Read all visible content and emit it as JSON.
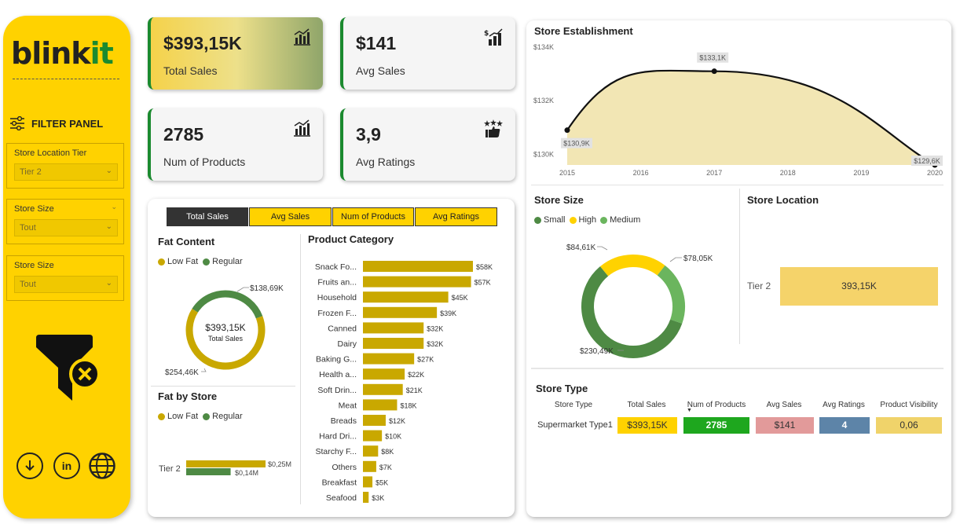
{
  "brand": {
    "logo_main": "blink",
    "logo_accent": "it"
  },
  "filter_panel": {
    "title": "FILTER PANEL",
    "slicers": [
      {
        "label": "Store Location Tier",
        "value": "Tier 2"
      },
      {
        "label": "Store Size",
        "value": "Tout"
      },
      {
        "label": "Store Size",
        "value": "Tout"
      }
    ],
    "bottom_icons": [
      "download-icon",
      "linkedin-icon",
      "globe-icon"
    ],
    "linkedin_text": "in"
  },
  "kpis": {
    "total_sales": {
      "value": "$393,15K",
      "label": "Total Sales"
    },
    "avg_sales": {
      "value": "$141",
      "label": "Avg Sales"
    },
    "num_products": {
      "value": "2785",
      "label": "Num of Products"
    },
    "avg_ratings": {
      "value": "3,9",
      "label": "Avg Ratings"
    }
  },
  "tabs": [
    "Total Sales",
    "Avg Sales",
    "Num of Products",
    "Avg Ratings"
  ],
  "colors": {
    "yellow": "#ffd200",
    "dark_yellow": "#c9a800",
    "green": "#4e8a44",
    "light_green": "#6bb55e",
    "bar": "#c9a800",
    "kpi_green": "#1b8a2f"
  },
  "chart_data": [
    {
      "id": "fat_content",
      "type": "pie",
      "title": "Fat Content",
      "legend": [
        "Low Fat",
        "Regular"
      ],
      "labels": [
        "Low Fat",
        "Regular"
      ],
      "values": [
        254.46,
        138.69
      ],
      "data_labels": [
        "$254,46K",
        "$138,69K"
      ],
      "center_value": "$393,15K",
      "center_label": "Total Sales"
    },
    {
      "id": "fat_by_store",
      "type": "bar",
      "title": "Fat by Store",
      "legend": [
        "Low Fat",
        "Regular"
      ],
      "categories": [
        "Tier 2"
      ],
      "series": [
        {
          "name": "Low Fat",
          "values": [
            0.25
          ],
          "data_labels": [
            "$0,25M"
          ]
        },
        {
          "name": "Regular",
          "values": [
            0.14
          ],
          "data_labels": [
            "$0,14M"
          ]
        }
      ],
      "xlim": [
        0,
        0.25
      ]
    },
    {
      "id": "product_category",
      "type": "bar",
      "title": "Product Category",
      "categories": [
        "Snack Fo...",
        "Fruits an...",
        "Household",
        "Frozen F...",
        "Canned",
        "Dairy",
        "Baking G...",
        "Health a...",
        "Soft Drin...",
        "Meat",
        "Breads",
        "Hard Dri...",
        "Starchy F...",
        "Others",
        "Breakfast",
        "Seafood"
      ],
      "values": [
        58,
        57,
        45,
        39,
        32,
        32,
        27,
        22,
        21,
        18,
        12,
        10,
        8,
        7,
        5,
        3
      ],
      "data_labels": [
        "$58K",
        "$57K",
        "$45K",
        "$39K",
        "$32K",
        "$32K",
        "$27K",
        "$22K",
        "$21K",
        "$18K",
        "$12K",
        "$10K",
        "$8K",
        "$7K",
        "$5K",
        "$3K"
      ],
      "xlim": [
        0,
        58
      ]
    },
    {
      "id": "store_establishment",
      "type": "area",
      "title": "Store Establishment",
      "x": [
        2015,
        2016,
        2017,
        2018,
        2019,
        2020
      ],
      "x_ticks": [
        "2015",
        "2016",
        "2017",
        "2018",
        "2019",
        "2020"
      ],
      "points": [
        {
          "x": 2015,
          "y": 130.9,
          "label": "$130,9K"
        },
        {
          "x": 2017,
          "y": 133.1,
          "label": "$133,1K"
        },
        {
          "x": 2020,
          "y": 129.6,
          "label": "$129,6K"
        }
      ],
      "y_ticks": [
        "$134K",
        "$132K",
        "$130K"
      ],
      "y_tick_values": [
        134,
        132,
        130
      ],
      "ylim": [
        129.6,
        134
      ]
    },
    {
      "id": "store_size",
      "type": "pie",
      "title": "Store Size",
      "legend": [
        "Small",
        "High",
        "Medium"
      ],
      "labels": [
        "Small",
        "High",
        "Medium"
      ],
      "values": [
        230.49,
        84.61,
        78.05
      ],
      "data_labels": [
        "$230,49K",
        "$84,61K",
        "$78,05K"
      ]
    },
    {
      "id": "store_location",
      "type": "bar",
      "title": "Store Location",
      "categories": [
        "Tier 2"
      ],
      "values": [
        393.15
      ],
      "data_labels": [
        "393,15K"
      ]
    },
    {
      "id": "store_type",
      "type": "table",
      "title": "Store Type",
      "columns": [
        "Store Type",
        "Total Sales",
        "Num of Products",
        "Avg Sales",
        "Avg Ratings",
        "Product Visibility"
      ],
      "rows": [
        [
          "Supermarket Type1",
          "$393,15K",
          "2785",
          "$141",
          "4",
          "0,06"
        ]
      ]
    }
  ]
}
